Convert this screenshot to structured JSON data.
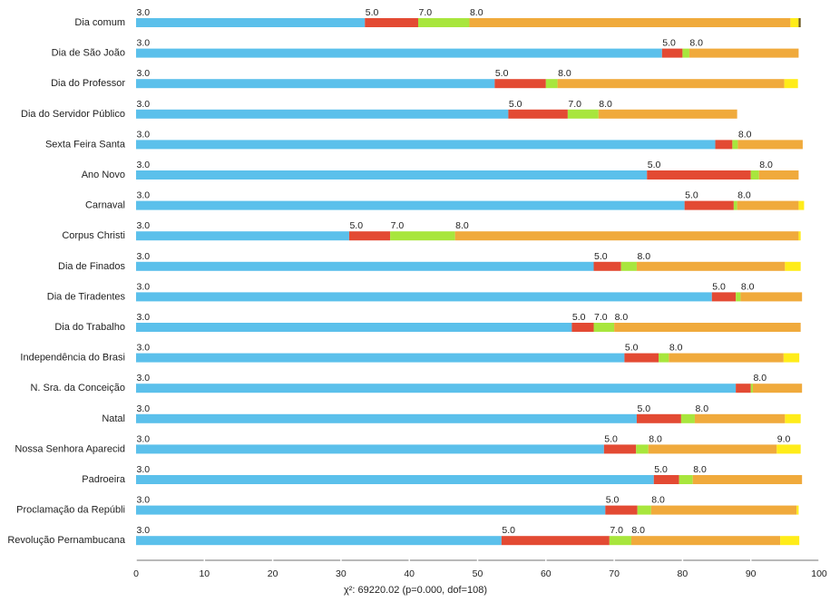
{
  "chart_data": {
    "type": "bar",
    "orientation": "horizontal",
    "stacked": true,
    "categories": [
      "Dia comum",
      "Dia de São João",
      "Dia do Professor",
      "Dia do Servidor Público",
      "Sexta Feira Santa",
      "Ano Novo",
      "Carnaval",
      "Corpus Christi",
      "Dia de Finados",
      "Dia de Tiradentes",
      "Dia do Trabalho",
      "Independência do Brasi",
      "N. Sra. da Conceição",
      "Natal",
      "Nossa Senhora Aparecid",
      "Padroeira",
      "Proclamação da Repúbli",
      "Revolução Pernambucana"
    ],
    "series": [
      {
        "key": "3.0",
        "color": "#5bc0eb",
        "values": [
          33.5,
          77.0,
          52.5,
          54.5,
          84.8,
          74.8,
          80.3,
          31.2,
          67.0,
          84.3,
          63.8,
          71.5,
          87.8,
          73.3,
          68.5,
          75.8,
          68.7,
          53.5
        ]
      },
      {
        "key": "5.0",
        "color": "#e34a33",
        "values": [
          7.8,
          3.0,
          7.5,
          8.7,
          2.5,
          15.2,
          7.2,
          6.0,
          4.0,
          3.5,
          3.2,
          5.0,
          2.2,
          6.5,
          4.7,
          3.7,
          4.7,
          15.8
        ]
      },
      {
        "key": "7.0",
        "color": "#a8e63d",
        "values": [
          7.5,
          1.0,
          1.7,
          4.5,
          0.8,
          1.2,
          0.5,
          9.5,
          2.3,
          0.7,
          3.0,
          1.5,
          0.3,
          2.0,
          1.8,
          2.0,
          2.0,
          3.2
        ]
      },
      {
        "key": "8.0",
        "color": "#f0aa3c",
        "values": [
          47.0,
          16.0,
          33.2,
          20.3,
          9.5,
          5.8,
          9.0,
          50.3,
          21.7,
          9.0,
          27.3,
          16.8,
          7.2,
          13.2,
          18.8,
          16.0,
          21.3,
          21.8
        ]
      },
      {
        "key": "9.0",
        "color": "#ffec19",
        "values": [
          1.2,
          0,
          2.0,
          0,
          0,
          0,
          0.8,
          0.3,
          2.3,
          0,
          0,
          2.3,
          0,
          2.3,
          3.5,
          0,
          0.3,
          2.8
        ]
      },
      {
        "key": "10.0",
        "color": "#6d5a20",
        "values": [
          0.3,
          0,
          0,
          0,
          0,
          0,
          0,
          0,
          0,
          0,
          0,
          0,
          0,
          0,
          0,
          0,
          0,
          0
        ]
      }
    ],
    "segment_labels": [
      [
        "3.0",
        "5.0",
        "7.0",
        "8.0"
      ],
      [
        "3.0",
        "5.0",
        "8.0"
      ],
      [
        "3.0",
        "5.0",
        "8.0"
      ],
      [
        "3.0",
        "5.0",
        "7.0",
        "8.0"
      ],
      [
        "3.0",
        "8.0"
      ],
      [
        "3.0",
        "5.0",
        "8.0"
      ],
      [
        "3.0",
        "5.0",
        "8.0"
      ],
      [
        "3.0",
        "5.0",
        "7.0",
        "8.0"
      ],
      [
        "3.0",
        "5.0",
        "8.0"
      ],
      [
        "3.0",
        "5.0",
        "8.0"
      ],
      [
        "3.0",
        "5.0",
        "7.0",
        "8.0"
      ],
      [
        "3.0",
        "5.0",
        "8.0"
      ],
      [
        "3.0",
        "8.0"
      ],
      [
        "3.0",
        "5.0",
        "8.0"
      ],
      [
        "3.0",
        "5.0",
        "8.0",
        "9.0"
      ],
      [
        "3.0",
        "5.0",
        "8.0"
      ],
      [
        "3.0",
        "5.0",
        "8.0"
      ],
      [
        "3.0",
        "5.0",
        "7.0",
        "8.0"
      ]
    ],
    "xlim": [
      0,
      100
    ],
    "xticks": [
      0,
      10,
      20,
      30,
      40,
      50,
      60,
      70,
      80,
      90,
      100
    ],
    "xlabel": "",
    "ylabel": "",
    "title": "",
    "legend": "none",
    "grid": false
  },
  "footer": {
    "statistic": "χ²: 69220.02 (p=0.000, dof=108)"
  }
}
